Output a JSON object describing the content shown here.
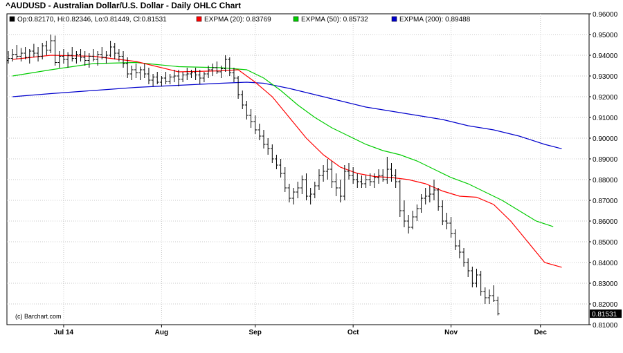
{
  "chart_data": {
    "type": "ohlc",
    "title": "^AUDUSD - Australian Dollar/U.S. Dollar - Daily OHLC Chart",
    "legend": [
      {
        "label": "Op:0.82170, Hi:0.82346, Lo:0.81449, Cl:0.81531",
        "color": "#000000"
      },
      {
        "label": "EXPMA (20): 0.83769",
        "color": "#ff0000"
      },
      {
        "label": "EXPMA (50): 0.85732",
        "color": "#00cc00"
      },
      {
        "label": "EXPMA (200): 0.89488",
        "color": "#0000cc"
      }
    ],
    "credit": "(c) Barchart.com",
    "last_price": "0.81531",
    "ylim": [
      0.81,
      0.96
    ],
    "y_ticks": [
      "0.96000",
      "0.95000",
      "0.94000",
      "0.93000",
      "0.92000",
      "0.91000",
      "0.90000",
      "0.89000",
      "0.88000",
      "0.87000",
      "0.86000",
      "0.85000",
      "0.84000",
      "0.83000",
      "0.82000",
      "0.81000"
    ],
    "x_labels": [
      "Jul 14",
      "Aug",
      "Sep",
      "Oct",
      "Nov",
      "Dec"
    ],
    "x_label_bars": [
      13,
      36,
      58,
      81,
      104,
      125
    ],
    "grid": true,
    "price_ohlc": [
      [
        0.9375,
        0.942,
        0.936,
        0.9385
      ],
      [
        0.9385,
        0.943,
        0.937,
        0.9405
      ],
      [
        0.9405,
        0.945,
        0.938,
        0.9395
      ],
      [
        0.9395,
        0.9435,
        0.937,
        0.941
      ],
      [
        0.941,
        0.944,
        0.938,
        0.939
      ],
      [
        0.939,
        0.943,
        0.936,
        0.942
      ],
      [
        0.942,
        0.9455,
        0.939,
        0.941
      ],
      [
        0.941,
        0.944,
        0.937,
        0.9395
      ],
      [
        0.9395,
        0.946,
        0.938,
        0.9445
      ],
      [
        0.9445,
        0.947,
        0.94,
        0.9425
      ],
      [
        0.9425,
        0.95,
        0.941,
        0.947
      ],
      [
        0.947,
        0.9495,
        0.935,
        0.9365
      ],
      [
        0.9365,
        0.942,
        0.934,
        0.9395
      ],
      [
        0.9395,
        0.943,
        0.936,
        0.938
      ],
      [
        0.938,
        0.9415,
        0.934,
        0.94
      ],
      [
        0.94,
        0.944,
        0.937,
        0.9385
      ],
      [
        0.9385,
        0.942,
        0.936,
        0.9405
      ],
      [
        0.9405,
        0.943,
        0.937,
        0.939
      ],
      [
        0.939,
        0.942,
        0.935,
        0.9375
      ],
      [
        0.9375,
        0.941,
        0.934,
        0.9395
      ],
      [
        0.9395,
        0.943,
        0.937,
        0.938
      ],
      [
        0.938,
        0.942,
        0.935,
        0.9405
      ],
      [
        0.9405,
        0.944,
        0.938,
        0.939
      ],
      [
        0.939,
        0.942,
        0.936,
        0.94
      ],
      [
        0.94,
        0.947,
        0.939,
        0.944
      ],
      [
        0.944,
        0.946,
        0.938,
        0.941
      ],
      [
        0.941,
        0.943,
        0.937,
        0.9395
      ],
      [
        0.9395,
        0.942,
        0.934,
        0.936
      ],
      [
        0.936,
        0.939,
        0.929,
        0.931
      ],
      [
        0.931,
        0.935,
        0.928,
        0.933
      ],
      [
        0.933,
        0.936,
        0.929,
        0.9315
      ],
      [
        0.9315,
        0.9345,
        0.928,
        0.933
      ],
      [
        0.933,
        0.936,
        0.929,
        0.931
      ],
      [
        0.931,
        0.934,
        0.926,
        0.928
      ],
      [
        0.928,
        0.931,
        0.925,
        0.9295
      ],
      [
        0.9295,
        0.932,
        0.926,
        0.927
      ],
      [
        0.927,
        0.93,
        0.925,
        0.929
      ],
      [
        0.929,
        0.932,
        0.926,
        0.9275
      ],
      [
        0.9275,
        0.931,
        0.926,
        0.9295
      ],
      [
        0.9295,
        0.933,
        0.927,
        0.93
      ],
      [
        0.93,
        0.933,
        0.925,
        0.9285
      ],
      [
        0.9285,
        0.932,
        0.927,
        0.9305
      ],
      [
        0.9305,
        0.934,
        0.928,
        0.931
      ],
      [
        0.931,
        0.933,
        0.929,
        0.9315
      ],
      [
        0.9315,
        0.934,
        0.928,
        0.9305
      ],
      [
        0.9305,
        0.933,
        0.926,
        0.929
      ],
      [
        0.929,
        0.932,
        0.927,
        0.931
      ],
      [
        0.931,
        0.935,
        0.929,
        0.933
      ],
      [
        0.933,
        0.936,
        0.93,
        0.934
      ],
      [
        0.934,
        0.937,
        0.931,
        0.932
      ],
      [
        0.932,
        0.935,
        0.929,
        0.9335
      ],
      [
        0.9335,
        0.94,
        0.932,
        0.938
      ],
      [
        0.938,
        0.939,
        0.93,
        0.9315
      ],
      [
        0.9315,
        0.934,
        0.927,
        0.929
      ],
      [
        0.929,
        0.93,
        0.919,
        0.921
      ],
      [
        0.921,
        0.923,
        0.914,
        0.916
      ],
      [
        0.916,
        0.918,
        0.909,
        0.911
      ],
      [
        0.911,
        0.914,
        0.905,
        0.908
      ],
      [
        0.908,
        0.911,
        0.902,
        0.904
      ],
      [
        0.904,
        0.907,
        0.899,
        0.901
      ],
      [
        0.901,
        0.904,
        0.895,
        0.897
      ],
      [
        0.897,
        0.9,
        0.892,
        0.895
      ],
      [
        0.895,
        0.897,
        0.888,
        0.89
      ],
      [
        0.89,
        0.892,
        0.885,
        0.887
      ],
      [
        0.887,
        0.89,
        0.881,
        0.883
      ],
      [
        0.883,
        0.886,
        0.874,
        0.876
      ],
      [
        0.876,
        0.878,
        0.869,
        0.871
      ],
      [
        0.871,
        0.876,
        0.868,
        0.874
      ],
      [
        0.874,
        0.879,
        0.871,
        0.876
      ],
      [
        0.876,
        0.882,
        0.873,
        0.88
      ],
      [
        0.88,
        0.883,
        0.87,
        0.872
      ],
      [
        0.872,
        0.876,
        0.868,
        0.873
      ],
      [
        0.873,
        0.879,
        0.871,
        0.877
      ],
      [
        0.877,
        0.885,
        0.875,
        0.882
      ],
      [
        0.882,
        0.887,
        0.879,
        0.884
      ],
      [
        0.884,
        0.89,
        0.88,
        0.885
      ],
      [
        0.885,
        0.889,
        0.876,
        0.879
      ],
      [
        0.879,
        0.883,
        0.872,
        0.876
      ],
      [
        0.876,
        0.88,
        0.869,
        0.872
      ],
      [
        0.872,
        0.887,
        0.87,
        0.884
      ],
      [
        0.884,
        0.888,
        0.88,
        0.882
      ],
      [
        0.882,
        0.886,
        0.878,
        0.88
      ],
      [
        0.88,
        0.883,
        0.876,
        0.879
      ],
      [
        0.879,
        0.882,
        0.876,
        0.878
      ],
      [
        0.878,
        0.882,
        0.876,
        0.88
      ],
      [
        0.88,
        0.883,
        0.877,
        0.879
      ],
      [
        0.879,
        0.883,
        0.876,
        0.881
      ],
      [
        0.881,
        0.885,
        0.878,
        0.882
      ],
      [
        0.882,
        0.885,
        0.879,
        0.88
      ],
      [
        0.88,
        0.891,
        0.878,
        0.885
      ],
      [
        0.885,
        0.888,
        0.879,
        0.882
      ],
      [
        0.882,
        0.885,
        0.876,
        0.879
      ],
      [
        0.879,
        0.88,
        0.862,
        0.865
      ],
      [
        0.865,
        0.87,
        0.857,
        0.86
      ],
      [
        0.86,
        0.863,
        0.854,
        0.857
      ],
      [
        0.857,
        0.865,
        0.856,
        0.862
      ],
      [
        0.862,
        0.868,
        0.86,
        0.866
      ],
      [
        0.866,
        0.873,
        0.864,
        0.871
      ],
      [
        0.871,
        0.876,
        0.868,
        0.872
      ],
      [
        0.872,
        0.877,
        0.869,
        0.873
      ],
      [
        0.873,
        0.88,
        0.87,
        0.875
      ],
      [
        0.875,
        0.876,
        0.865,
        0.867
      ],
      [
        0.867,
        0.87,
        0.858,
        0.86
      ],
      [
        0.86,
        0.864,
        0.856,
        0.859
      ],
      [
        0.859,
        0.862,
        0.852,
        0.854
      ],
      [
        0.854,
        0.856,
        0.846,
        0.848
      ],
      [
        0.848,
        0.851,
        0.842,
        0.845
      ],
      [
        0.845,
        0.847,
        0.838,
        0.84
      ],
      [
        0.84,
        0.842,
        0.833,
        0.836
      ],
      [
        0.836,
        0.838,
        0.828,
        0.83
      ],
      [
        0.83,
        0.837,
        0.828,
        0.834
      ],
      [
        0.834,
        0.836,
        0.824,
        0.826
      ],
      [
        0.826,
        0.828,
        0.82,
        0.823
      ],
      [
        0.823,
        0.827,
        0.82,
        0.824
      ],
      [
        0.824,
        0.829,
        0.821,
        0.8217
      ],
      [
        0.8217,
        0.8235,
        0.8145,
        0.8153
      ]
    ],
    "expma_20": [
      [
        1,
        0.938
      ],
      [
        10,
        0.94
      ],
      [
        20,
        0.9395
      ],
      [
        30,
        0.937
      ],
      [
        40,
        0.932
      ],
      [
        50,
        0.9325
      ],
      [
        54,
        0.933
      ],
      [
        58,
        0.927
      ],
      [
        62,
        0.92
      ],
      [
        66,
        0.91
      ],
      [
        70,
        0.9
      ],
      [
        74,
        0.892
      ],
      [
        78,
        0.886
      ],
      [
        82,
        0.883
      ],
      [
        86,
        0.8815
      ],
      [
        90,
        0.881
      ],
      [
        94,
        0.88
      ],
      [
        98,
        0.878
      ],
      [
        102,
        0.8745
      ],
      [
        106,
        0.872
      ],
      [
        110,
        0.8715
      ],
      [
        114,
        0.868
      ],
      [
        118,
        0.86
      ],
      [
        122,
        0.85
      ],
      [
        126,
        0.84
      ],
      [
        130,
        0.8377
      ]
    ],
    "expma_50": [
      [
        1,
        0.93
      ],
      [
        10,
        0.933
      ],
      [
        20,
        0.936
      ],
      [
        30,
        0.9365
      ],
      [
        40,
        0.9345
      ],
      [
        50,
        0.934
      ],
      [
        56,
        0.933
      ],
      [
        60,
        0.929
      ],
      [
        64,
        0.923
      ],
      [
        68,
        0.916
      ],
      [
        72,
        0.91
      ],
      [
        76,
        0.905
      ],
      [
        80,
        0.901
      ],
      [
        84,
        0.897
      ],
      [
        88,
        0.894
      ],
      [
        92,
        0.892
      ],
      [
        96,
        0.889
      ],
      [
        100,
        0.885
      ],
      [
        104,
        0.881
      ],
      [
        108,
        0.878
      ],
      [
        112,
        0.874
      ],
      [
        116,
        0.87
      ],
      [
        120,
        0.865
      ],
      [
        124,
        0.86
      ],
      [
        128,
        0.8573
      ]
    ],
    "expma_200": [
      [
        1,
        0.92
      ],
      [
        10,
        0.9215
      ],
      [
        20,
        0.923
      ],
      [
        30,
        0.9245
      ],
      [
        40,
        0.9255
      ],
      [
        50,
        0.9265
      ],
      [
        56,
        0.927
      ],
      [
        60,
        0.9265
      ],
      [
        66,
        0.924
      ],
      [
        72,
        0.921
      ],
      [
        78,
        0.918
      ],
      [
        84,
        0.915
      ],
      [
        90,
        0.913
      ],
      [
        96,
        0.911
      ],
      [
        102,
        0.909
      ],
      [
        108,
        0.906
      ],
      [
        114,
        0.904
      ],
      [
        120,
        0.901
      ],
      [
        126,
        0.897
      ],
      [
        130,
        0.8949
      ]
    ]
  }
}
